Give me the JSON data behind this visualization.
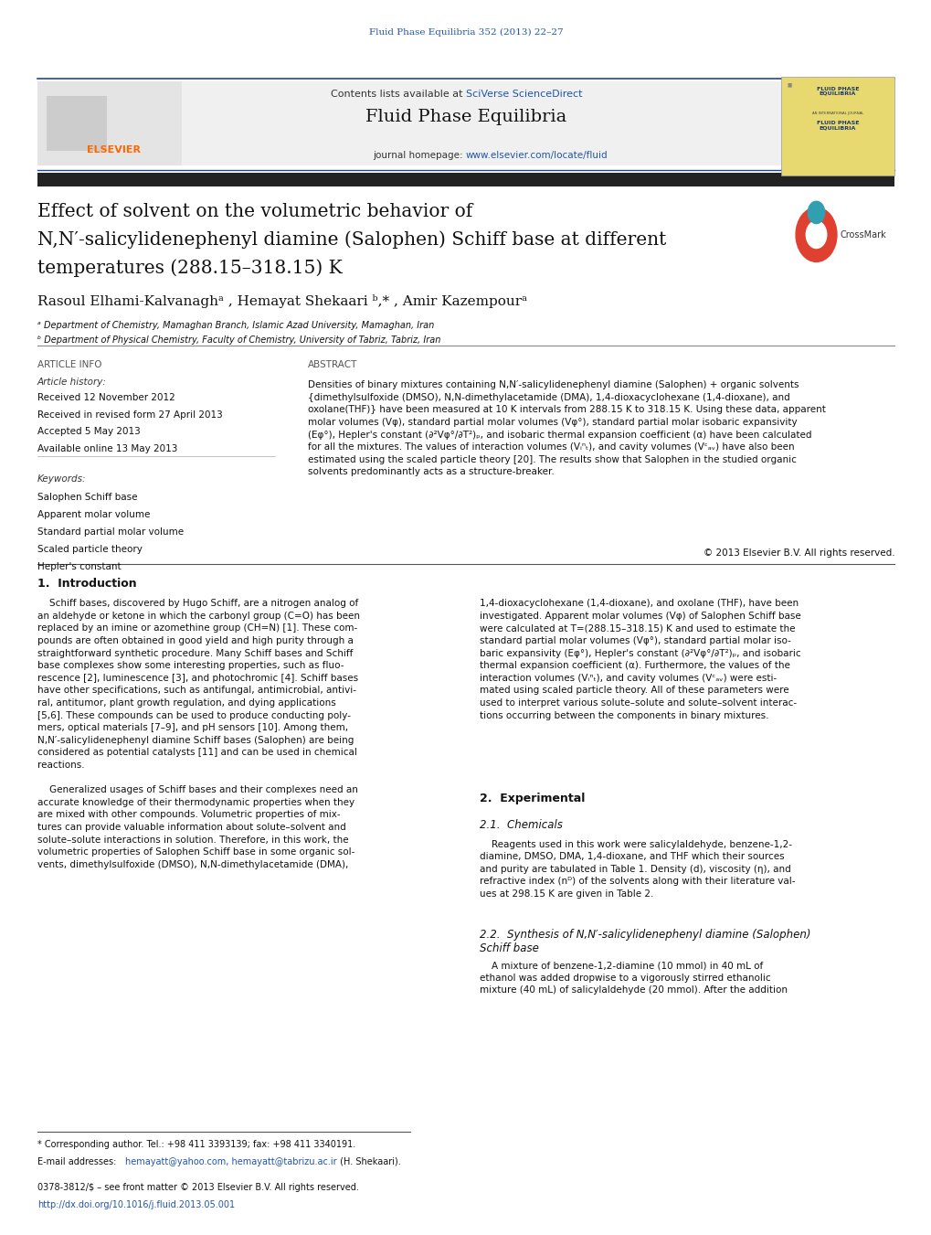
{
  "page_width": 10.2,
  "page_height": 13.51,
  "background_color": "#ffffff",
  "top_journal_ref": "Fluid Phase Equilibria 352 (2013) 22–27",
  "top_journal_ref_color": "#2255aa",
  "header_bg_color": "#f0f0f0",
  "black_bar_color": "#222222",
  "article_title_line1": "Effect of solvent on the volumetric behavior of",
  "article_title_line2": "N,N′-salicylidenephenyl diamine (Salophen) Schiff base at different",
  "article_title_line3": "temperatures (288.15–318.15) K",
  "authors": "Rasoul Elhami-Kalvanaghᵃ , Hemayat Shekaari ᵇ,* , Amir Kazempourᵃ",
  "affil_a": "ᵃ Department of Chemistry, Mamaghan Branch, Islamic Azad University, Mamaghan, Iran",
  "affil_b": "ᵇ Department of Physical Chemistry, Faculty of Chemistry, University of Tabriz, Tabriz, Iran",
  "section_article_info": "ARTICLE INFO",
  "section_abstract": "ABSTRACT",
  "article_history_title": "Article history:",
  "article_history": [
    "Received 12 November 2012",
    "Received in revised form 27 April 2013",
    "Accepted 5 May 2013",
    "Available online 13 May 2013"
  ],
  "keywords_title": "Keywords:",
  "keywords": [
    "Salophen Schiff base",
    "Apparent molar volume",
    "Standard partial molar volume",
    "Scaled particle theory",
    "Hepler's constant"
  ],
  "copyright_text": "© 2013 Elsevier B.V. All rights reserved.",
  "intro_title": "1.  Introduction",
  "section2_title": "2.  Experimental",
  "section21_title": "2.1.  Chemicals",
  "section22_title": "2.2.  Synthesis of N,N′-salicylidenephenyl diamine (Salophen)\nSchiff base",
  "footnote_star": "* Corresponding author. Tel.: +98 411 3393139; fax: +98 411 3340191.",
  "footnote_issn": "0378-3812/$ – see front matter © 2013 Elsevier B.V. All rights reserved.",
  "footnote_doi": "http://dx.doi.org/10.1016/j.fluid.2013.05.001",
  "link_color": "#2255aa"
}
